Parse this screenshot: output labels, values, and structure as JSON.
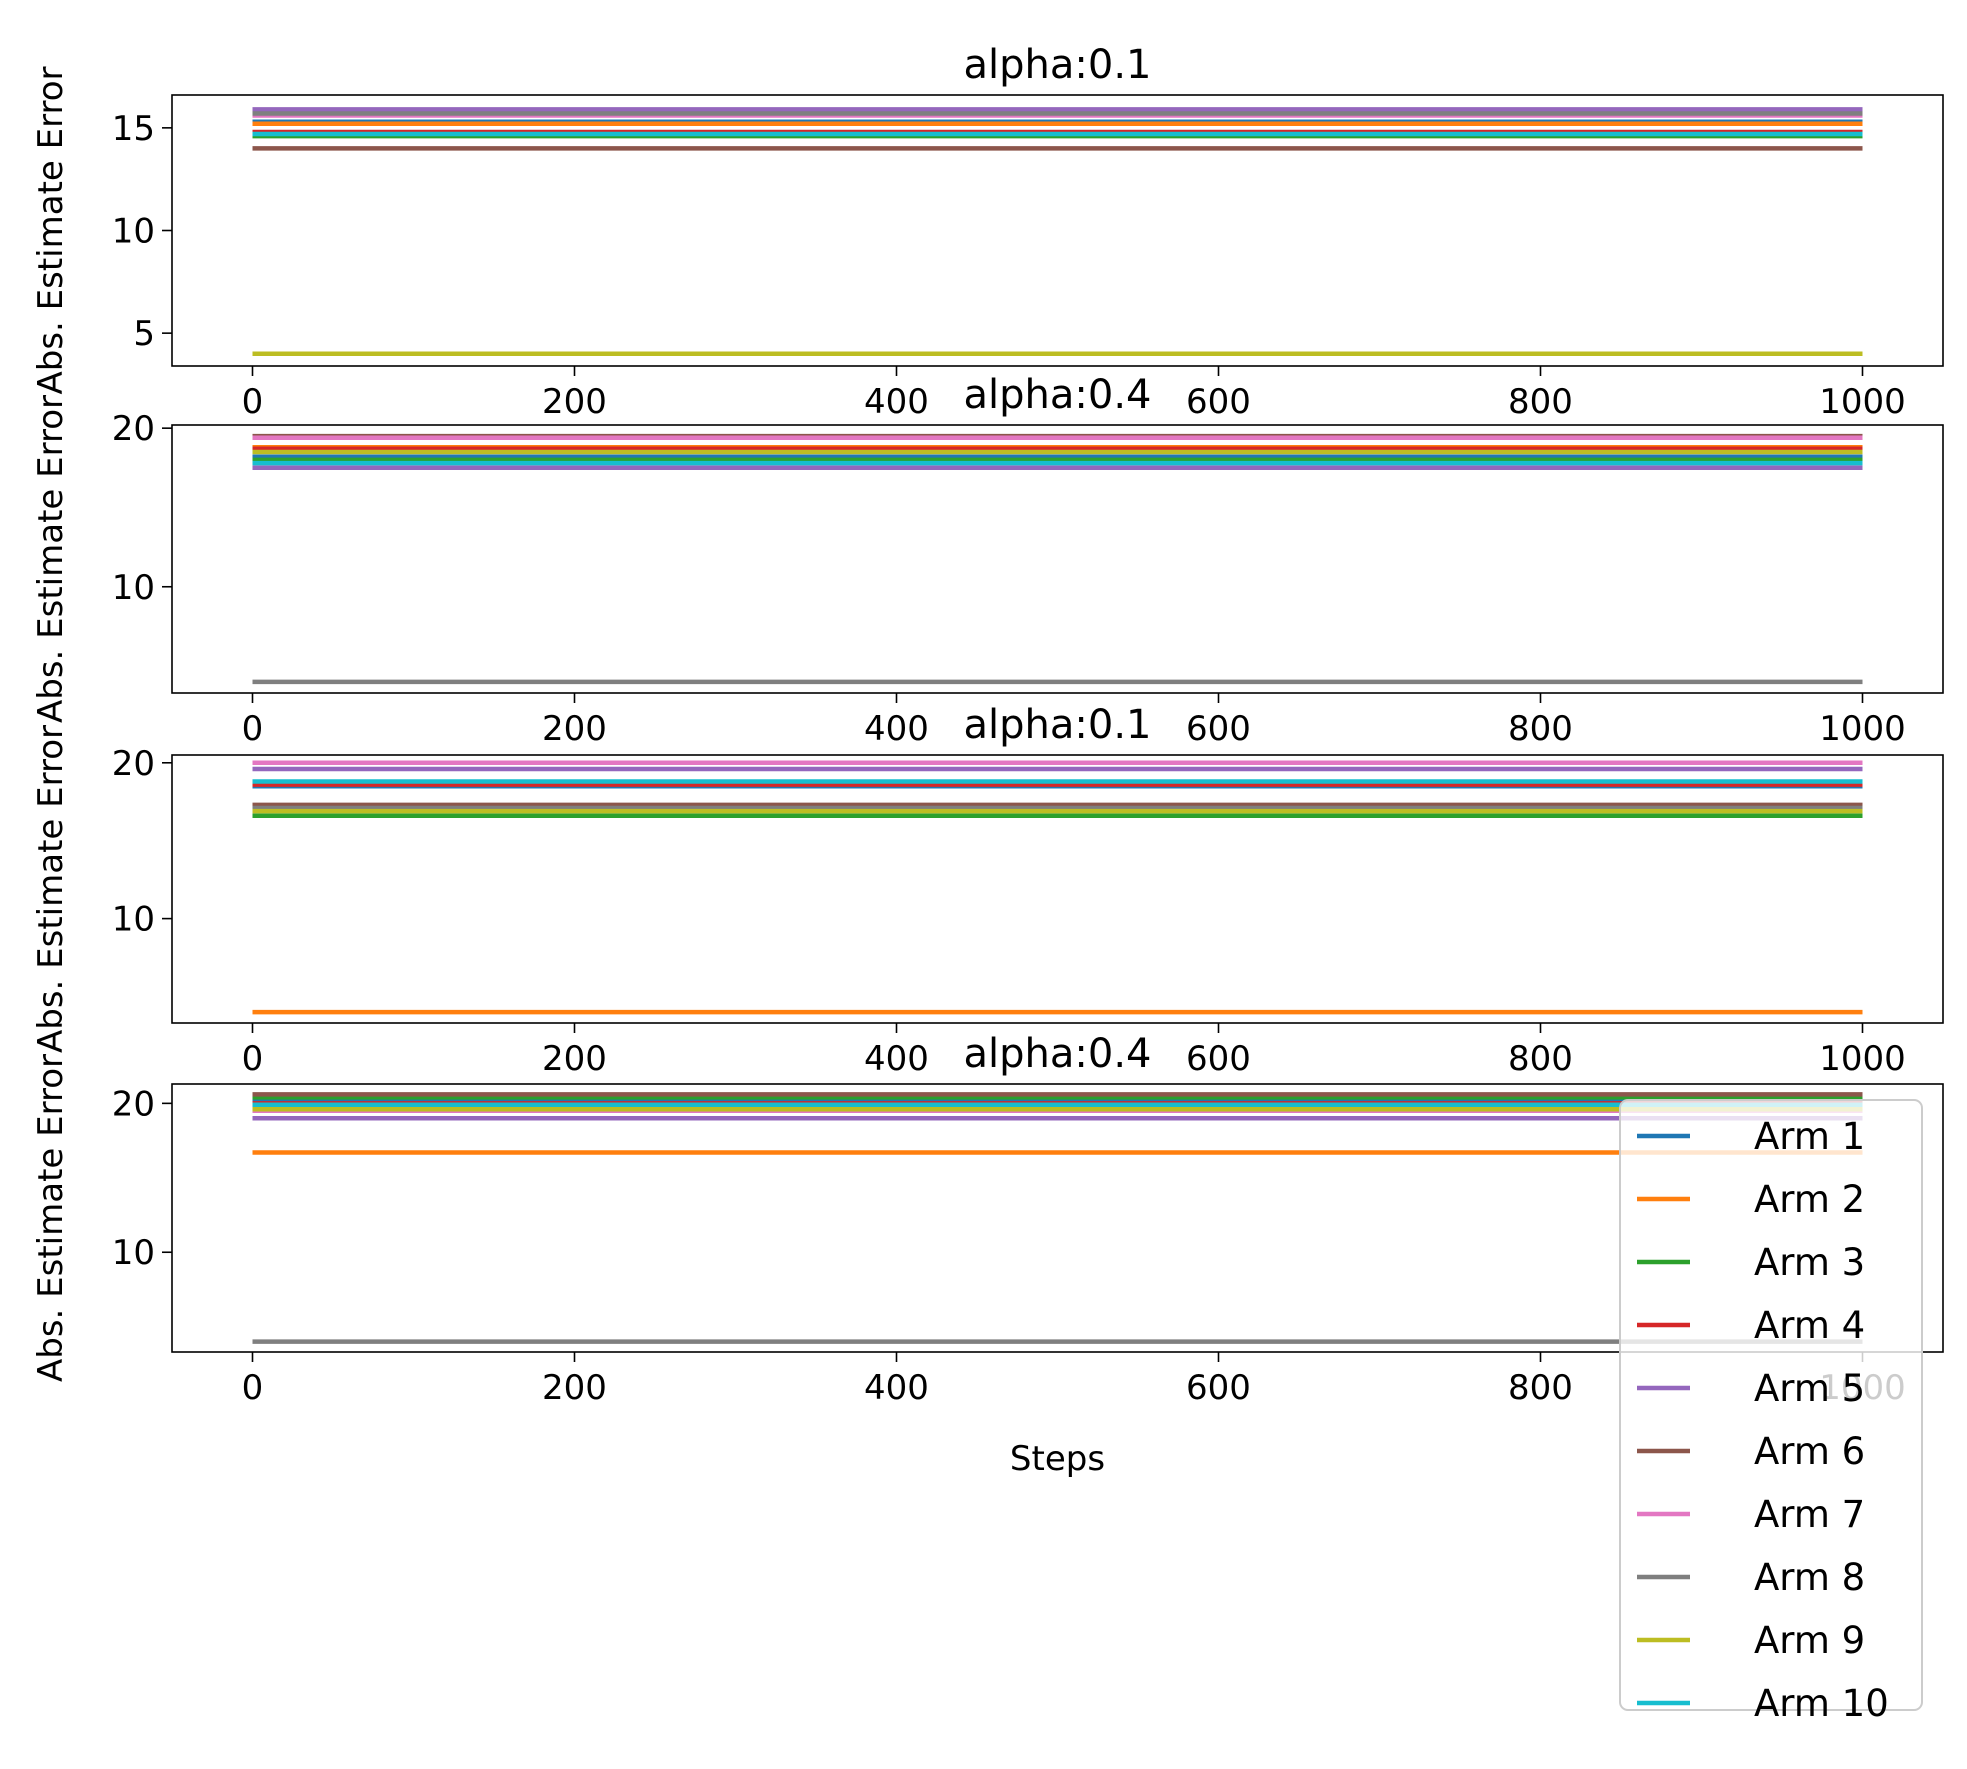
{
  "chart_data": [
    {
      "type": "line",
      "title": "alpha:0.1",
      "xlabel": "",
      "ylabel": "Abs. Estimate Error",
      "xlim": [
        -50,
        1050
      ],
      "ylim": [
        3.4,
        16.6
      ],
      "xticks": [
        0,
        200,
        400,
        600,
        800,
        1000
      ],
      "yticks": [
        5,
        10,
        15
      ],
      "x": [
        0,
        1000
      ],
      "series": [
        {
          "name": "Arm 1",
          "values": [
            15.3,
            15.3
          ]
        },
        {
          "name": "Arm 2",
          "values": [
            15.2,
            15.2
          ]
        },
        {
          "name": "Arm 3",
          "values": [
            14.6,
            14.6
          ]
        },
        {
          "name": "Arm 4",
          "values": [
            14.8,
            14.8
          ]
        },
        {
          "name": "Arm 5",
          "values": [
            15.9,
            15.9
          ]
        },
        {
          "name": "Arm 6",
          "values": [
            14.0,
            14.0
          ]
        },
        {
          "name": "Arm 7",
          "values": [
            15.6,
            15.6
          ]
        },
        {
          "name": "Arm 8",
          "values": [
            15.7,
            15.7
          ]
        },
        {
          "name": "Arm 9",
          "values": [
            4.0,
            4.0
          ]
        },
        {
          "name": "Arm 10",
          "values": [
            14.7,
            14.7
          ]
        }
      ]
    },
    {
      "type": "line",
      "title": "alpha:0.4",
      "xlabel": "",
      "ylabel": "Abs. Estimate Error",
      "xlim": [
        -50,
        1050
      ],
      "ylim": [
        3.3,
        20.2
      ],
      "xticks": [
        0,
        200,
        400,
        600,
        800,
        1000
      ],
      "yticks": [
        10,
        20
      ],
      "x": [
        0,
        1000
      ],
      "series": [
        {
          "name": "Arm 1",
          "values": [
            18.2,
            18.2
          ]
        },
        {
          "name": "Arm 2",
          "values": [
            18.8,
            18.8
          ]
        },
        {
          "name": "Arm 3",
          "values": [
            18.0,
            18.0
          ]
        },
        {
          "name": "Arm 4",
          "values": [
            18.7,
            18.7
          ]
        },
        {
          "name": "Arm 5",
          "values": [
            17.5,
            17.5
          ]
        },
        {
          "name": "Arm 6",
          "values": [
            19.5,
            19.5
          ]
        },
        {
          "name": "Arm 7",
          "values": [
            19.4,
            19.4
          ]
        },
        {
          "name": "Arm 8",
          "values": [
            4.0,
            4.0
          ]
        },
        {
          "name": "Arm 9",
          "values": [
            18.5,
            18.5
          ]
        },
        {
          "name": "Arm 10",
          "values": [
            17.8,
            17.8
          ]
        }
      ]
    },
    {
      "type": "line",
      "title": "alpha:0.1",
      "xlabel": "",
      "ylabel": "Abs. Estimate Error",
      "xlim": [
        -50,
        1050
      ],
      "ylim": [
        3.3,
        20.5
      ],
      "xticks": [
        0,
        200,
        400,
        600,
        800,
        1000
      ],
      "yticks": [
        10,
        20
      ],
      "x": [
        0,
        1000
      ],
      "series": [
        {
          "name": "Arm 1",
          "values": [
            18.5,
            18.5
          ]
        },
        {
          "name": "Arm 2",
          "values": [
            4.0,
            4.0
          ]
        },
        {
          "name": "Arm 3",
          "values": [
            16.6,
            16.6
          ]
        },
        {
          "name": "Arm 4",
          "values": [
            18.6,
            18.6
          ]
        },
        {
          "name": "Arm 5",
          "values": [
            19.6,
            19.6
          ]
        },
        {
          "name": "Arm 6",
          "values": [
            17.3,
            17.3
          ]
        },
        {
          "name": "Arm 7",
          "values": [
            20.0,
            20.0
          ]
        },
        {
          "name": "Arm 8",
          "values": [
            17.1,
            17.1
          ]
        },
        {
          "name": "Arm 9",
          "values": [
            16.9,
            16.9
          ]
        },
        {
          "name": "Arm 10",
          "values": [
            18.8,
            18.8
          ]
        }
      ]
    },
    {
      "type": "line",
      "title": "alpha:0.4",
      "xlabel": "Steps",
      "ylabel": "Abs. Estimate Error",
      "xlim": [
        -50,
        1050
      ],
      "ylim": [
        3.3,
        21.3
      ],
      "xticks": [
        0,
        200,
        400,
        600,
        800,
        1000
      ],
      "yticks": [
        10,
        20
      ],
      "x": [
        0,
        1000
      ],
      "series": [
        {
          "name": "Arm 1",
          "values": [
            20.2,
            20.2
          ]
        },
        {
          "name": "Arm 2",
          "values": [
            16.7,
            16.7
          ]
        },
        {
          "name": "Arm 3",
          "values": [
            20.4,
            20.4
          ]
        },
        {
          "name": "Arm 4",
          "values": [
            20.0,
            20.0
          ]
        },
        {
          "name": "Arm 5",
          "values": [
            19.0,
            19.0
          ]
        },
        {
          "name": "Arm 6",
          "values": [
            20.6,
            20.6
          ]
        },
        {
          "name": "Arm 7",
          "values": [
            19.5,
            19.5
          ]
        },
        {
          "name": "Arm 8",
          "values": [
            4.0,
            4.0
          ]
        },
        {
          "name": "Arm 9",
          "values": [
            19.6,
            19.6
          ]
        },
        {
          "name": "Arm 10",
          "values": [
            19.9,
            19.9
          ]
        }
      ]
    }
  ],
  "legend": {
    "placement": "lower-right",
    "entries": [
      "Arm 1",
      "Arm 2",
      "Arm 3",
      "Arm 4",
      "Arm 5",
      "Arm 6",
      "Arm 7",
      "Arm 8",
      "Arm 9",
      "Arm 10"
    ]
  },
  "colors": [
    "#1f77b4",
    "#ff7f0e",
    "#2ca02c",
    "#d62728",
    "#9467bd",
    "#8c564b",
    "#e377c2",
    "#7f7f7f",
    "#bcbd22",
    "#17becf"
  ]
}
